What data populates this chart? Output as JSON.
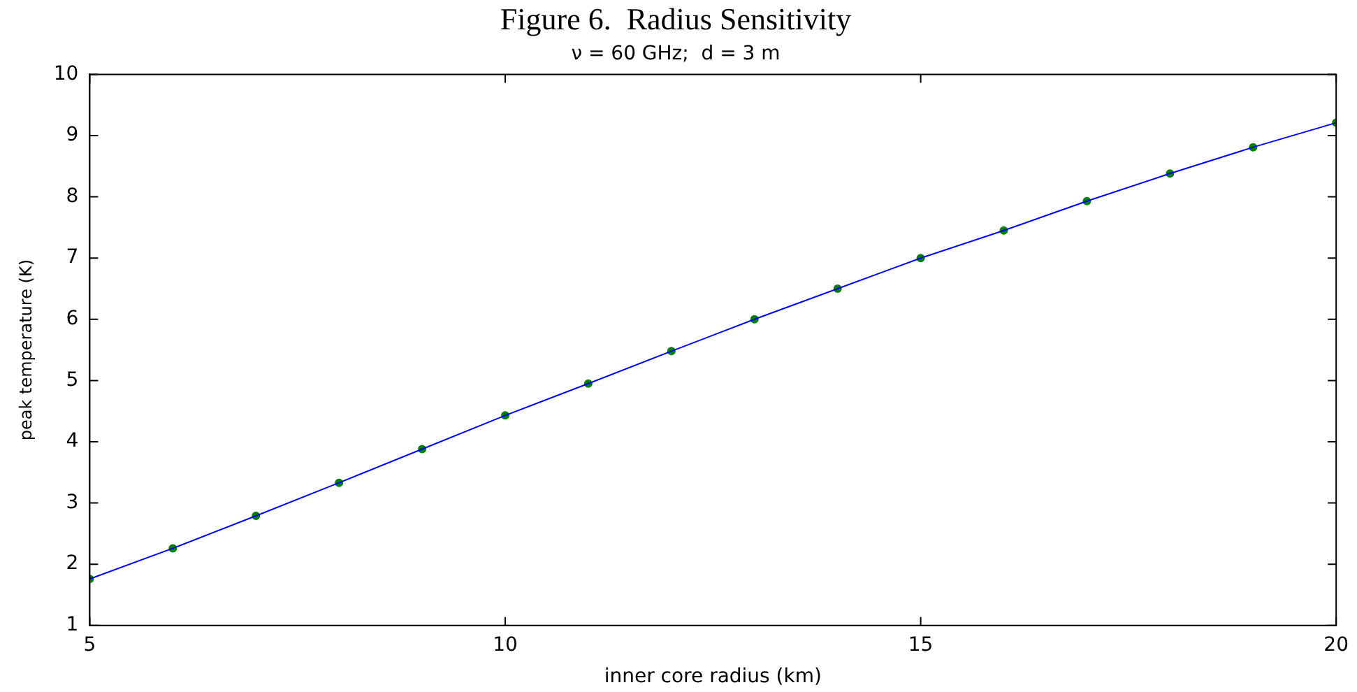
{
  "chart_data": {
    "type": "line",
    "title": "Figure 6.  Radius Sensitivity",
    "subtitle": "ν = 60 GHz;  d = 3 m",
    "xlabel": "inner core radius (km)",
    "ylabel": "peak temperature (K)",
    "x": [
      5,
      6,
      7,
      8,
      9,
      10,
      11,
      12,
      13,
      14,
      15,
      16,
      17,
      18,
      19,
      20
    ],
    "series": [
      {
        "type": "line",
        "color": "#0000ff",
        "marker": "none",
        "values": [
          1.76,
          2.26,
          2.79,
          3.33,
          3.88,
          4.43,
          4.95,
          5.48,
          6.0,
          6.5,
          7.0,
          7.45,
          7.93,
          8.38,
          8.81,
          9.21
        ]
      },
      {
        "type": "scatter",
        "color": "#008000",
        "marker": "circle",
        "values": [
          1.76,
          2.26,
          2.79,
          3.33,
          3.88,
          4.43,
          4.95,
          5.48,
          6.0,
          6.5,
          7.0,
          7.45,
          7.93,
          8.38,
          8.81,
          9.21
        ]
      }
    ],
    "xlim": [
      5,
      20
    ],
    "xticks": [
      5,
      10,
      15,
      20
    ],
    "ylim": [
      1,
      10
    ],
    "yticks": [
      1,
      2,
      3,
      4,
      5,
      6,
      7,
      8,
      9,
      10
    ],
    "grid": false,
    "legend": false
  }
}
